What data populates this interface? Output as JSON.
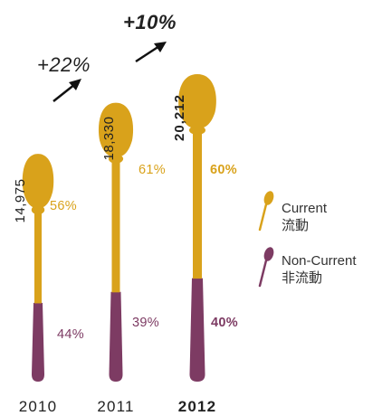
{
  "chart_data": {
    "type": "bar",
    "categories": [
      "2010",
      "2011",
      "2012"
    ],
    "totals": [
      "14,975",
      "18,330",
      "20,212"
    ],
    "series": [
      {
        "name": "Current 流動",
        "values": [
          56,
          61,
          60
        ],
        "labels": [
          "56%",
          "61%",
          "60%"
        ]
      },
      {
        "name": "Non-Current 非流動",
        "values": [
          44,
          39,
          40
        ],
        "labels": [
          "44%",
          "39%",
          "40%"
        ]
      }
    ],
    "growth": [
      "+22%",
      "+10%"
    ],
    "colors": {
      "current": "#D9A21B",
      "non_current": "#7D3B63",
      "text": "#222222"
    }
  },
  "legend": {
    "current": {
      "line1": "Current",
      "line2": "流動"
    },
    "non_current": {
      "line1": "Non-Current",
      "line2": "非流動"
    }
  }
}
